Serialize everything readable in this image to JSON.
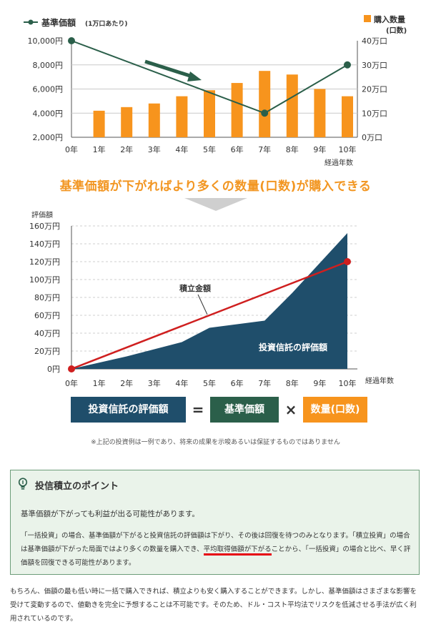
{
  "chart_data": [
    {
      "type": "bar+line",
      "legend": {
        "line_label": "基準価額",
        "line_label_note": "(1万口あたり)",
        "bar_label": "購入数量",
        "bar_label_unit": "(口数)"
      },
      "categories": [
        "0年",
        "1年",
        "2年",
        "3年",
        "4年",
        "5年",
        "6年",
        "7年",
        "8年",
        "9年",
        "10年"
      ],
      "x_axis_title": "経過年数",
      "left_axis": {
        "ticks": [
          "10,000円",
          "8,000円",
          "6,000円",
          "4,000円",
          "2,000円"
        ],
        "ylim": [
          2000,
          10000
        ]
      },
      "right_axis": {
        "ticks": [
          "40万口",
          "30万口",
          "20万口",
          "10万口",
          "0万口"
        ],
        "ylim": [
          0,
          40
        ]
      },
      "bars": {
        "name": "購入数量",
        "values": [
          null,
          11,
          12.5,
          14,
          17,
          19.5,
          22.5,
          27.5,
          26,
          20,
          17
        ]
      },
      "line": {
        "name": "基準価額",
        "points": [
          [
            0,
            10000
          ],
          [
            7,
            4000
          ],
          [
            10,
            8000
          ]
        ]
      },
      "colors": {
        "bar": "#f7941d",
        "line": "#2b5f4a"
      }
    },
    {
      "type": "area+line",
      "y_axis_title": "評価額",
      "categories": [
        "0年",
        "1年",
        "2年",
        "3年",
        "4年",
        "5年",
        "6年",
        "7年",
        "8年",
        "9年",
        "10年"
      ],
      "x_axis_title": "経過年数",
      "y_ticks": [
        "160万円",
        "140万円",
        "120万円",
        "100万円",
        "80万円",
        "60万円",
        "40万円",
        "20万円",
        "0円"
      ],
      "ylim": [
        0,
        160
      ],
      "area": {
        "name": "投資信託の評価額",
        "points": [
          [
            0,
            0
          ],
          [
            2,
            14
          ],
          [
            4,
            30
          ],
          [
            5,
            46
          ],
          [
            7,
            54
          ],
          [
            8,
            85
          ],
          [
            10,
            152
          ]
        ]
      },
      "line": {
        "name": "積立金額",
        "points": [
          [
            0,
            0
          ],
          [
            10,
            120
          ]
        ]
      },
      "colors": {
        "area": "#1f4e6b",
        "line": "#cf1f1f"
      }
    }
  ],
  "headline": "基準価額が下がればより多くの数量(口数)が購入できる",
  "formula": {
    "left": "投資信託の評価額",
    "equals": "=",
    "middle": "基準価額",
    "times": "×",
    "right": "数量(口数)"
  },
  "note": "※上記の投資例は一例であり、将来の成果を示唆あるいは保証するものではありません",
  "point_box": {
    "title": "投信積立のポイント",
    "lead": "基準価額が下がっても利益が出る可能性があります。",
    "body_1": "「一括投資」の場合、基準価額が下がると投資信託の評価額は下がり、その後は回復を待つのみとなります。「積立投資」の場合は基準価額が下がった局面ではより多くの数量を購入でき、",
    "body_highlight": "平均取得価額が下がる",
    "body_2": "ことから、「一括投資」の場合と比べ、早く評価額を回復できる可能性があります。"
  },
  "footer": "もちろん、価額の最も低い時に一括で購入できれば、積立よりも安く購入することができます。しかし、基準価額はさまざまな影響を受けて変動するので、値動きを完全に予想することは不可能です。そのため、ドル・コスト平均法でリスクを低減させる手法が広く利用されているのです。"
}
